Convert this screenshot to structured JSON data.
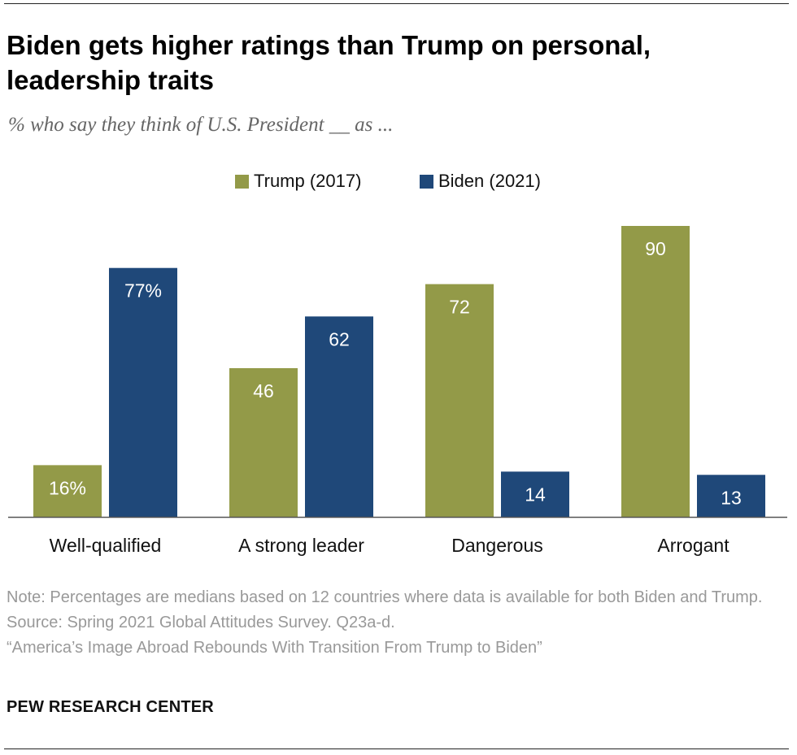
{
  "title": "Biden gets higher ratings than Trump on personal, leadership traits",
  "subtitle": "% who say they think of U.S. President __ as ...",
  "legend": {
    "trump": "Trump (2017)",
    "biden": "Biden (2021)"
  },
  "colors": {
    "trump": "#939a48",
    "biden": "#1f4879"
  },
  "chart_data": {
    "type": "bar",
    "categories": [
      "Well-qualified",
      "A strong leader",
      "Dangerous",
      "Arrogant"
    ],
    "series": [
      {
        "name": "Trump (2017)",
        "values": [
          16,
          46,
          72,
          90
        ],
        "labels": [
          "16%",
          "46",
          "72",
          "90"
        ]
      },
      {
        "name": "Biden (2021)",
        "values": [
          77,
          62,
          14,
          13
        ],
        "labels": [
          "77%",
          "62",
          "14",
          "13"
        ]
      }
    ],
    "ylim": [
      0,
      100
    ],
    "grid": false,
    "legend_position": "top-center"
  },
  "footer": {
    "note": "Note: Percentages are medians based on 12 countries where data is available for both Biden and Trump.",
    "source": "Source: Spring 2021 Global Attitudes Survey. Q23a-d.",
    "report": "“America’s Image Abroad Rebounds With Transition From Trump to Biden”",
    "brand": "PEW RESEARCH CENTER"
  }
}
